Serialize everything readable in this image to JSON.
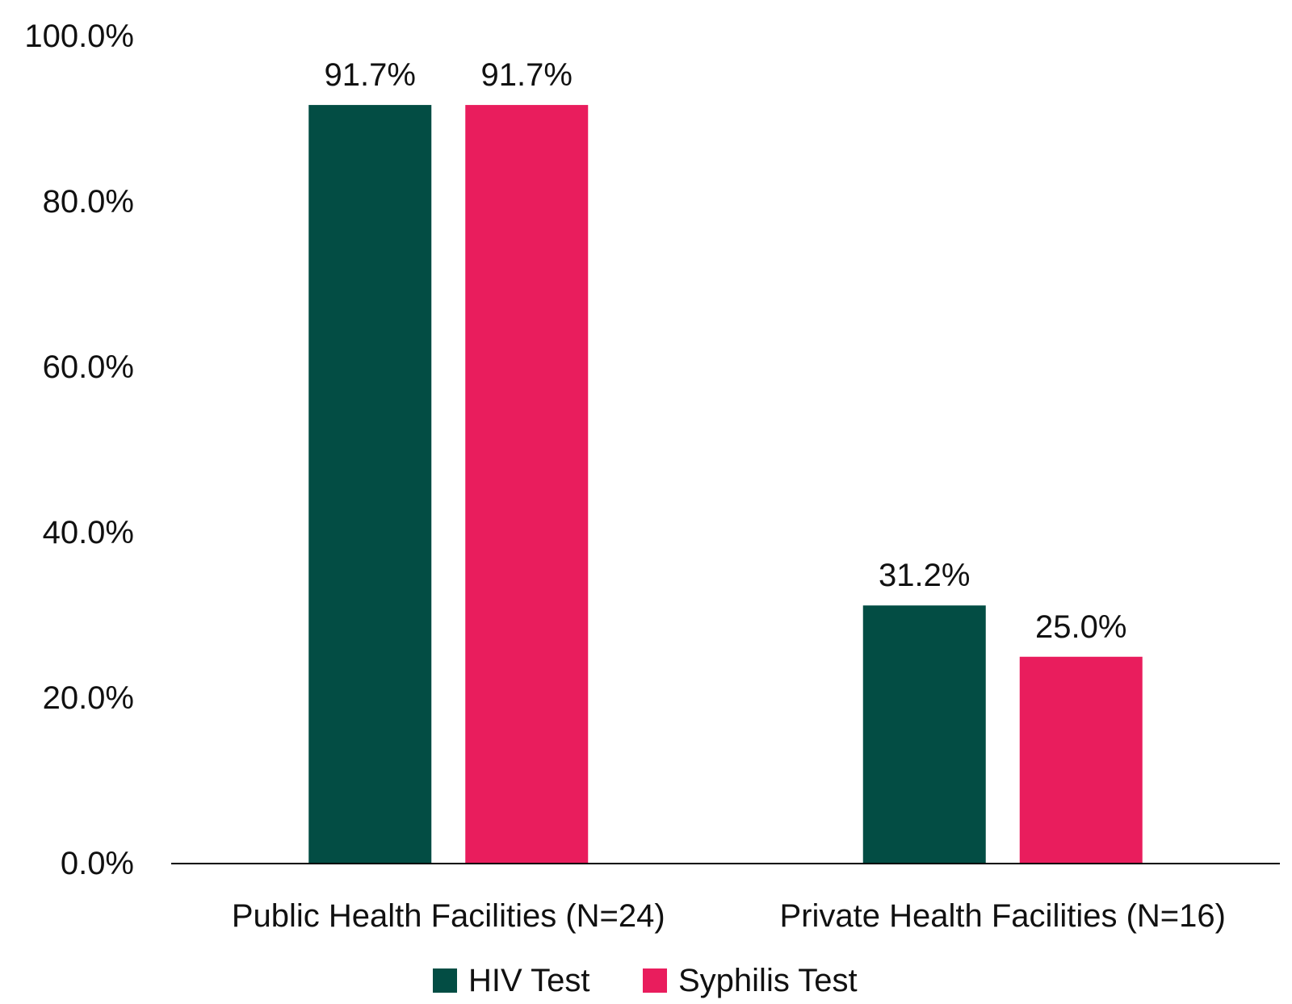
{
  "chart_data": {
    "type": "bar",
    "categories": [
      "Public Health Facilities (N=24)",
      "Private Health Facilities (N=16)"
    ],
    "series": [
      {
        "name": "HIV Test",
        "values": [
          91.7,
          31.2
        ],
        "color": "#034d44",
        "labels": [
          "91.7%",
          "31.2%"
        ]
      },
      {
        "name": "Syphilis Test",
        "values": [
          91.7,
          25.0
        ],
        "color": "#e91d5d",
        "labels": [
          "91.7%",
          "25.0%"
        ]
      }
    ],
    "ylim": [
      0,
      100
    ],
    "yticks": [
      0,
      20,
      40,
      60,
      80,
      100
    ],
    "ytick_labels": [
      "0.0%",
      "20.0%",
      "40.0%",
      "60.0%",
      "80.0%",
      "100.0%"
    ],
    "grid": false,
    "legend_position": "bottom"
  }
}
